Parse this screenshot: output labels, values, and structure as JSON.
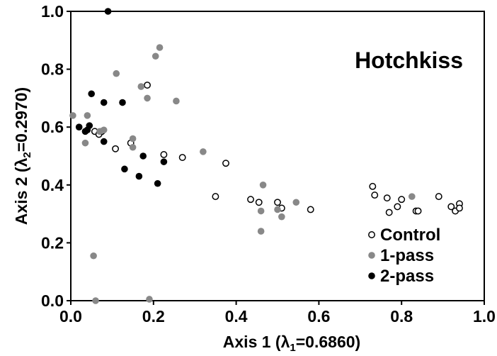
{
  "chart_data": {
    "type": "scatter",
    "title": "Hotchkiss",
    "xlabel": {
      "prefix": "Axis 1 (",
      "symbol": "λ",
      "sub": "1",
      "suffix": "=0.6860)"
    },
    "ylabel": {
      "prefix": "Axis 2 (",
      "symbol": "λ",
      "sub": "2",
      "suffix": "=0.2970)"
    },
    "xlim": [
      0.0,
      1.0
    ],
    "ylim": [
      0.0,
      1.0
    ],
    "x_ticks": [
      "0.0",
      "0.2",
      "0.4",
      "0.6",
      "0.8",
      "1.0"
    ],
    "y_ticks": [
      "0.0",
      "0.2",
      "0.4",
      "0.6",
      "0.8",
      "1.0"
    ],
    "grid": false,
    "legend_position": "bottom-right",
    "series": [
      {
        "name": "Control",
        "marker": "open-circle",
        "color": "#000000",
        "points": [
          [
            0.058,
            0.585
          ],
          [
            0.068,
            0.575
          ],
          [
            0.075,
            0.585
          ],
          [
            0.108,
            0.525
          ],
          [
            0.145,
            0.545
          ],
          [
            0.185,
            0.745
          ],
          [
            0.225,
            0.505
          ],
          [
            0.27,
            0.495
          ],
          [
            0.35,
            0.36
          ],
          [
            0.375,
            0.475
          ],
          [
            0.435,
            0.35
          ],
          [
            0.455,
            0.34
          ],
          [
            0.5,
            0.34
          ],
          [
            0.51,
            0.32
          ],
          [
            0.58,
            0.315
          ],
          [
            0.73,
            0.395
          ],
          [
            0.735,
            0.365
          ],
          [
            0.765,
            0.355
          ],
          [
            0.77,
            0.305
          ],
          [
            0.79,
            0.325
          ],
          [
            0.8,
            0.35
          ],
          [
            0.835,
            0.31
          ],
          [
            0.84,
            0.31
          ],
          [
            0.89,
            0.36
          ],
          [
            0.92,
            0.325
          ],
          [
            0.93,
            0.31
          ],
          [
            0.94,
            0.335
          ],
          [
            0.94,
            0.32
          ]
        ]
      },
      {
        "name": "1-pass",
        "marker": "filled-circle",
        "color": "#888888",
        "points": [
          [
            0.005,
            0.64
          ],
          [
            0.035,
            0.545
          ],
          [
            0.04,
            0.64
          ],
          [
            0.055,
            0.155
          ],
          [
            0.06,
            0.0
          ],
          [
            0.07,
            0.585
          ],
          [
            0.08,
            0.59
          ],
          [
            0.11,
            0.785
          ],
          [
            0.15,
            0.56
          ],
          [
            0.15,
            0.53
          ],
          [
            0.17,
            0.74
          ],
          [
            0.185,
            0.7
          ],
          [
            0.19,
            0.005
          ],
          [
            0.205,
            0.845
          ],
          [
            0.215,
            0.875
          ],
          [
            0.255,
            0.69
          ],
          [
            0.32,
            0.515
          ],
          [
            0.46,
            0.31
          ],
          [
            0.46,
            0.24
          ],
          [
            0.465,
            0.4
          ],
          [
            0.5,
            0.315
          ],
          [
            0.51,
            0.29
          ],
          [
            0.545,
            0.34
          ],
          [
            0.825,
            0.36
          ]
        ]
      },
      {
        "name": "2-pass",
        "marker": "filled-circle",
        "color": "#000000",
        "points": [
          [
            0.02,
            0.6
          ],
          [
            0.035,
            0.585
          ],
          [
            0.04,
            0.59
          ],
          [
            0.045,
            0.605
          ],
          [
            0.05,
            0.715
          ],
          [
            0.08,
            0.685
          ],
          [
            0.08,
            0.55
          ],
          [
            0.09,
            1.0
          ],
          [
            0.125,
            0.685
          ],
          [
            0.13,
            0.455
          ],
          [
            0.165,
            0.43
          ],
          [
            0.175,
            0.5
          ],
          [
            0.21,
            0.405
          ],
          [
            0.225,
            0.48
          ]
        ]
      }
    ]
  }
}
